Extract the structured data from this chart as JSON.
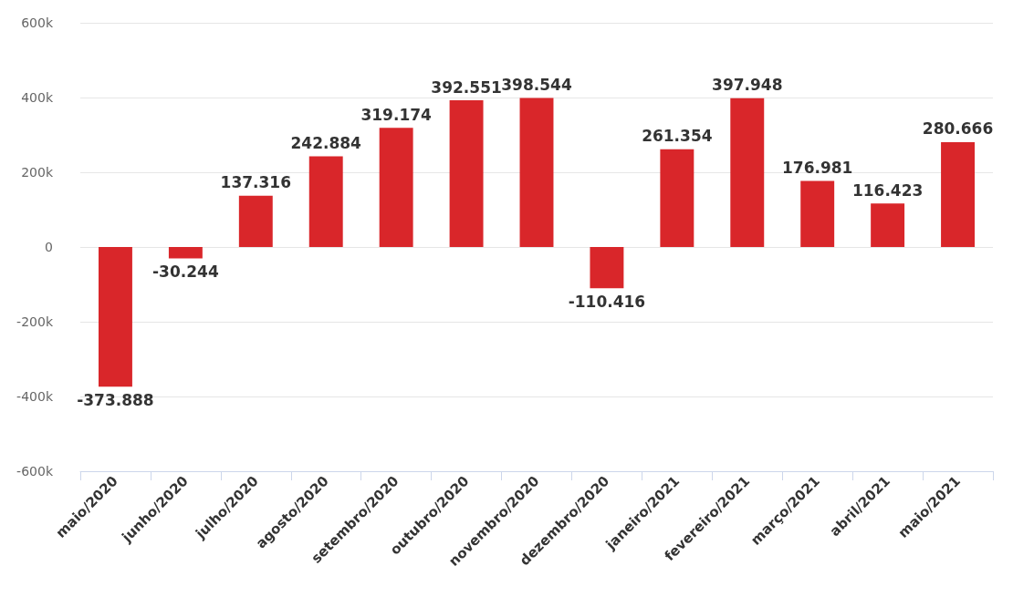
{
  "chart_data": {
    "type": "bar",
    "categories": [
      "maio/2020",
      "junho/2020",
      "julho/2020",
      "agosto/2020",
      "setembro/2020",
      "outubro/2020",
      "novembro/2020",
      "dezembro/2020",
      "janeiro/2021",
      "fevereiro/2021",
      "março/2021",
      "abril/2021",
      "maio/2021"
    ],
    "values": [
      -373888,
      -30244,
      137316,
      242884,
      319174,
      392551,
      398544,
      -110416,
      261354,
      397948,
      176981,
      116423,
      280666
    ],
    "value_labels": [
      "-373.888",
      "-30.244",
      "137.316",
      "242.884",
      "319.174",
      "392.551",
      "398.544",
      "-110.416",
      "261.354",
      "397.948",
      "176.981",
      "116.423",
      "280.666"
    ],
    "color": "#d9262a",
    "ylim": [
      -600000,
      600000
    ],
    "yticks": [
      {
        "value": -600000,
        "label": "-600k"
      },
      {
        "value": -400000,
        "label": "-400k"
      },
      {
        "value": -200000,
        "label": "-200k"
      },
      {
        "value": 0,
        "label": "0"
      },
      {
        "value": 200000,
        "label": "200k"
      },
      {
        "value": 400000,
        "label": "400k"
      },
      {
        "value": 600000,
        "label": "600k"
      }
    ],
    "grid": "y"
  }
}
